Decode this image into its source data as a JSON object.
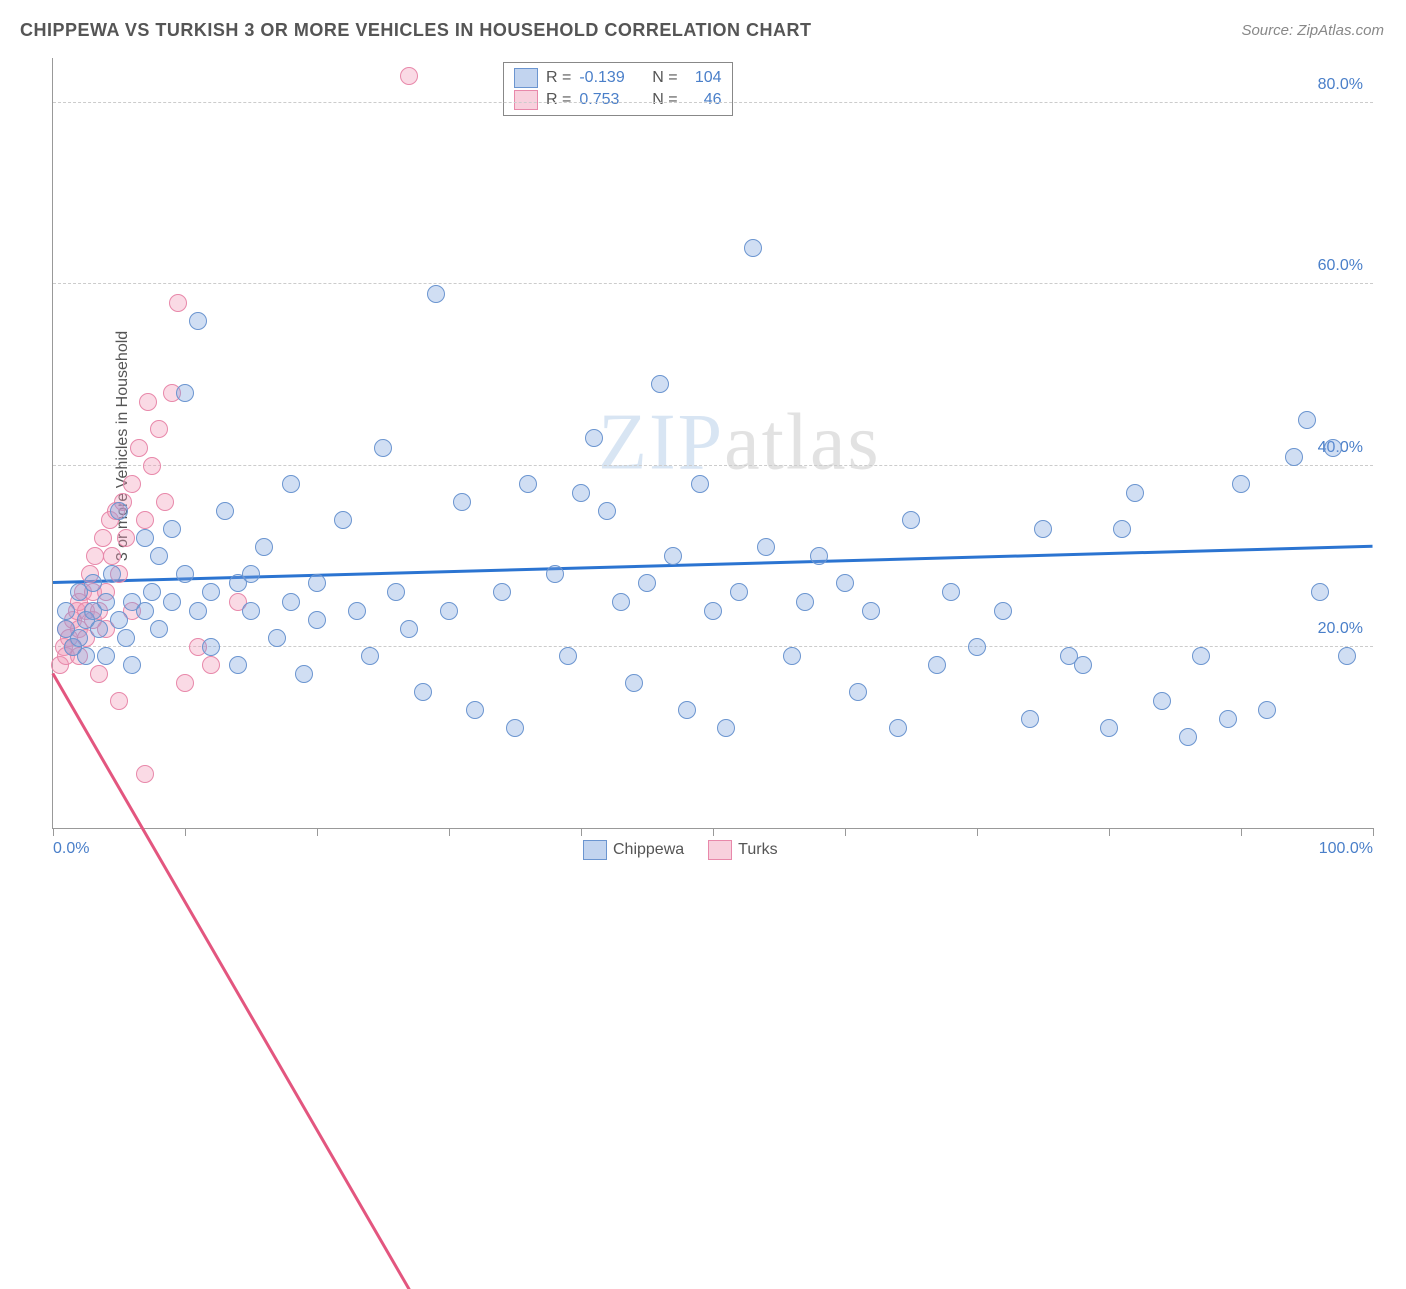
{
  "title": "CHIPPEWA VS TURKISH 3 OR MORE VEHICLES IN HOUSEHOLD CORRELATION CHART",
  "source": "Source: ZipAtlas.com",
  "y_axis_label": "3 or more Vehicles in Household",
  "watermark_a": "ZIP",
  "watermark_b": "atlas",
  "chart": {
    "type": "scatter",
    "xmin": 0,
    "xmax": 100,
    "ymin": 0,
    "ymax": 85,
    "y_gridlines": [
      20,
      40,
      60,
      80
    ],
    "y_tick_labels": [
      "20.0%",
      "40.0%",
      "60.0%",
      "80.0%"
    ],
    "x_ticks": [
      0,
      10,
      20,
      30,
      40,
      50,
      60,
      70,
      80,
      90,
      100
    ],
    "x_tick_labels_left": "0.0%",
    "x_tick_labels_right": "100.0%",
    "grid_color": "#cccccc",
    "axis_color": "#999999",
    "point_radius": 8,
    "series": {
      "chippewa": {
        "label": "Chippewa",
        "fill": "rgba(120,160,220,0.35)",
        "stroke": "#6b95d0",
        "R": "-0.139",
        "N": "104",
        "regression": {
          "x1": 0,
          "y1": 27,
          "x2": 100,
          "y2": 23,
          "color": "#2b74d1"
        },
        "points": [
          [
            1,
            22
          ],
          [
            1,
            24
          ],
          [
            1.5,
            20
          ],
          [
            2,
            21
          ],
          [
            2,
            26
          ],
          [
            2.5,
            23
          ],
          [
            2.5,
            19
          ],
          [
            3,
            24
          ],
          [
            3,
            27
          ],
          [
            3.5,
            22
          ],
          [
            4,
            25
          ],
          [
            4,
            19
          ],
          [
            4.5,
            28
          ],
          [
            5,
            23
          ],
          [
            5,
            35
          ],
          [
            5.5,
            21
          ],
          [
            6,
            25
          ],
          [
            6,
            18
          ],
          [
            7,
            32
          ],
          [
            7,
            24
          ],
          [
            7.5,
            26
          ],
          [
            8,
            30
          ],
          [
            8,
            22
          ],
          [
            9,
            33
          ],
          [
            9,
            25
          ],
          [
            10,
            28
          ],
          [
            10,
            48
          ],
          [
            11,
            24
          ],
          [
            11,
            56
          ],
          [
            12,
            26
          ],
          [
            12,
            20
          ],
          [
            13,
            35
          ],
          [
            14,
            27
          ],
          [
            14,
            18
          ],
          [
            15,
            24
          ],
          [
            15,
            28
          ],
          [
            16,
            31
          ],
          [
            17,
            21
          ],
          [
            18,
            38
          ],
          [
            18,
            25
          ],
          [
            19,
            17
          ],
          [
            20,
            23
          ],
          [
            20,
            27
          ],
          [
            22,
            34
          ],
          [
            23,
            24
          ],
          [
            24,
            19
          ],
          [
            25,
            42
          ],
          [
            26,
            26
          ],
          [
            27,
            22
          ],
          [
            28,
            15
          ],
          [
            29,
            59
          ],
          [
            30,
            24
          ],
          [
            31,
            36
          ],
          [
            32,
            13
          ],
          [
            34,
            26
          ],
          [
            35,
            11
          ],
          [
            36,
            38
          ],
          [
            38,
            28
          ],
          [
            39,
            19
          ],
          [
            40,
            37
          ],
          [
            41,
            43
          ],
          [
            42,
            35
          ],
          [
            43,
            25
          ],
          [
            44,
            16
          ],
          [
            45,
            27
          ],
          [
            46,
            49
          ],
          [
            47,
            30
          ],
          [
            48,
            13
          ],
          [
            49,
            38
          ],
          [
            50,
            24
          ],
          [
            51,
            11
          ],
          [
            52,
            26
          ],
          [
            53,
            64
          ],
          [
            54,
            31
          ],
          [
            56,
            19
          ],
          [
            57,
            25
          ],
          [
            58,
            30
          ],
          [
            60,
            27
          ],
          [
            61,
            15
          ],
          [
            62,
            24
          ],
          [
            64,
            11
          ],
          [
            65,
            34
          ],
          [
            67,
            18
          ],
          [
            68,
            26
          ],
          [
            70,
            20
          ],
          [
            72,
            24
          ],
          [
            74,
            12
          ],
          [
            75,
            33
          ],
          [
            77,
            19
          ],
          [
            78,
            18
          ],
          [
            80,
            11
          ],
          [
            81,
            33
          ],
          [
            82,
            37
          ],
          [
            84,
            14
          ],
          [
            86,
            10
          ],
          [
            87,
            19
          ],
          [
            89,
            12
          ],
          [
            90,
            38
          ],
          [
            92,
            13
          ],
          [
            94,
            41
          ],
          [
            95,
            45
          ],
          [
            96,
            26
          ],
          [
            97,
            42
          ],
          [
            98,
            19
          ]
        ]
      },
      "turks": {
        "label": "Turks",
        "fill": "rgba(240,150,180,0.35)",
        "stroke": "#e888aa",
        "R": "0.753",
        "N": "46",
        "regression": {
          "x1": 0,
          "y1": 17,
          "x2": 27,
          "y2": 85,
          "color": "#e3567f"
        },
        "points": [
          [
            0.5,
            18
          ],
          [
            0.8,
            20
          ],
          [
            1,
            22
          ],
          [
            1,
            19
          ],
          [
            1.2,
            21
          ],
          [
            1.5,
            23
          ],
          [
            1.5,
            20
          ],
          [
            1.8,
            24
          ],
          [
            2,
            22
          ],
          [
            2,
            25
          ],
          [
            2,
            19
          ],
          [
            2.3,
            26
          ],
          [
            2.5,
            21
          ],
          [
            2.5,
            24
          ],
          [
            2.8,
            28
          ],
          [
            3,
            23
          ],
          [
            3,
            26
          ],
          [
            3.2,
            30
          ],
          [
            3.5,
            24
          ],
          [
            3.5,
            17
          ],
          [
            3.8,
            32
          ],
          [
            4,
            26
          ],
          [
            4,
            22
          ],
          [
            4.3,
            34
          ],
          [
            4.5,
            30
          ],
          [
            4.8,
            35
          ],
          [
            5,
            28
          ],
          [
            5,
            14
          ],
          [
            5.3,
            36
          ],
          [
            5.5,
            32
          ],
          [
            6,
            38
          ],
          [
            6,
            24
          ],
          [
            6.5,
            42
          ],
          [
            7,
            34
          ],
          [
            7.2,
            47
          ],
          [
            7.5,
            40
          ],
          [
            8,
            44
          ],
          [
            8.5,
            36
          ],
          [
            9,
            48
          ],
          [
            9.5,
            58
          ],
          [
            7,
            6
          ],
          [
            10,
            16
          ],
          [
            11,
            20
          ],
          [
            12,
            18
          ],
          [
            14,
            25
          ],
          [
            27,
            83
          ]
        ]
      }
    }
  },
  "stats_box": {
    "rows": [
      {
        "swatch_fill": "rgba(120,160,220,0.45)",
        "swatch_border": "#6b95d0",
        "r_label": "R =",
        "r_val": "-0.139",
        "n_label": "N =",
        "n_val": "104"
      },
      {
        "swatch_fill": "rgba(240,150,180,0.45)",
        "swatch_border": "#e888aa",
        "r_label": "R =",
        "r_val": " 0.753",
        "n_label": "N =",
        "n_val": " 46"
      }
    ]
  },
  "bottom_legend": [
    {
      "swatch_fill": "rgba(120,160,220,0.45)",
      "swatch_border": "#6b95d0",
      "label": "Chippewa"
    },
    {
      "swatch_fill": "rgba(240,150,180,0.45)",
      "swatch_border": "#e888aa",
      "label": "Turks"
    }
  ]
}
